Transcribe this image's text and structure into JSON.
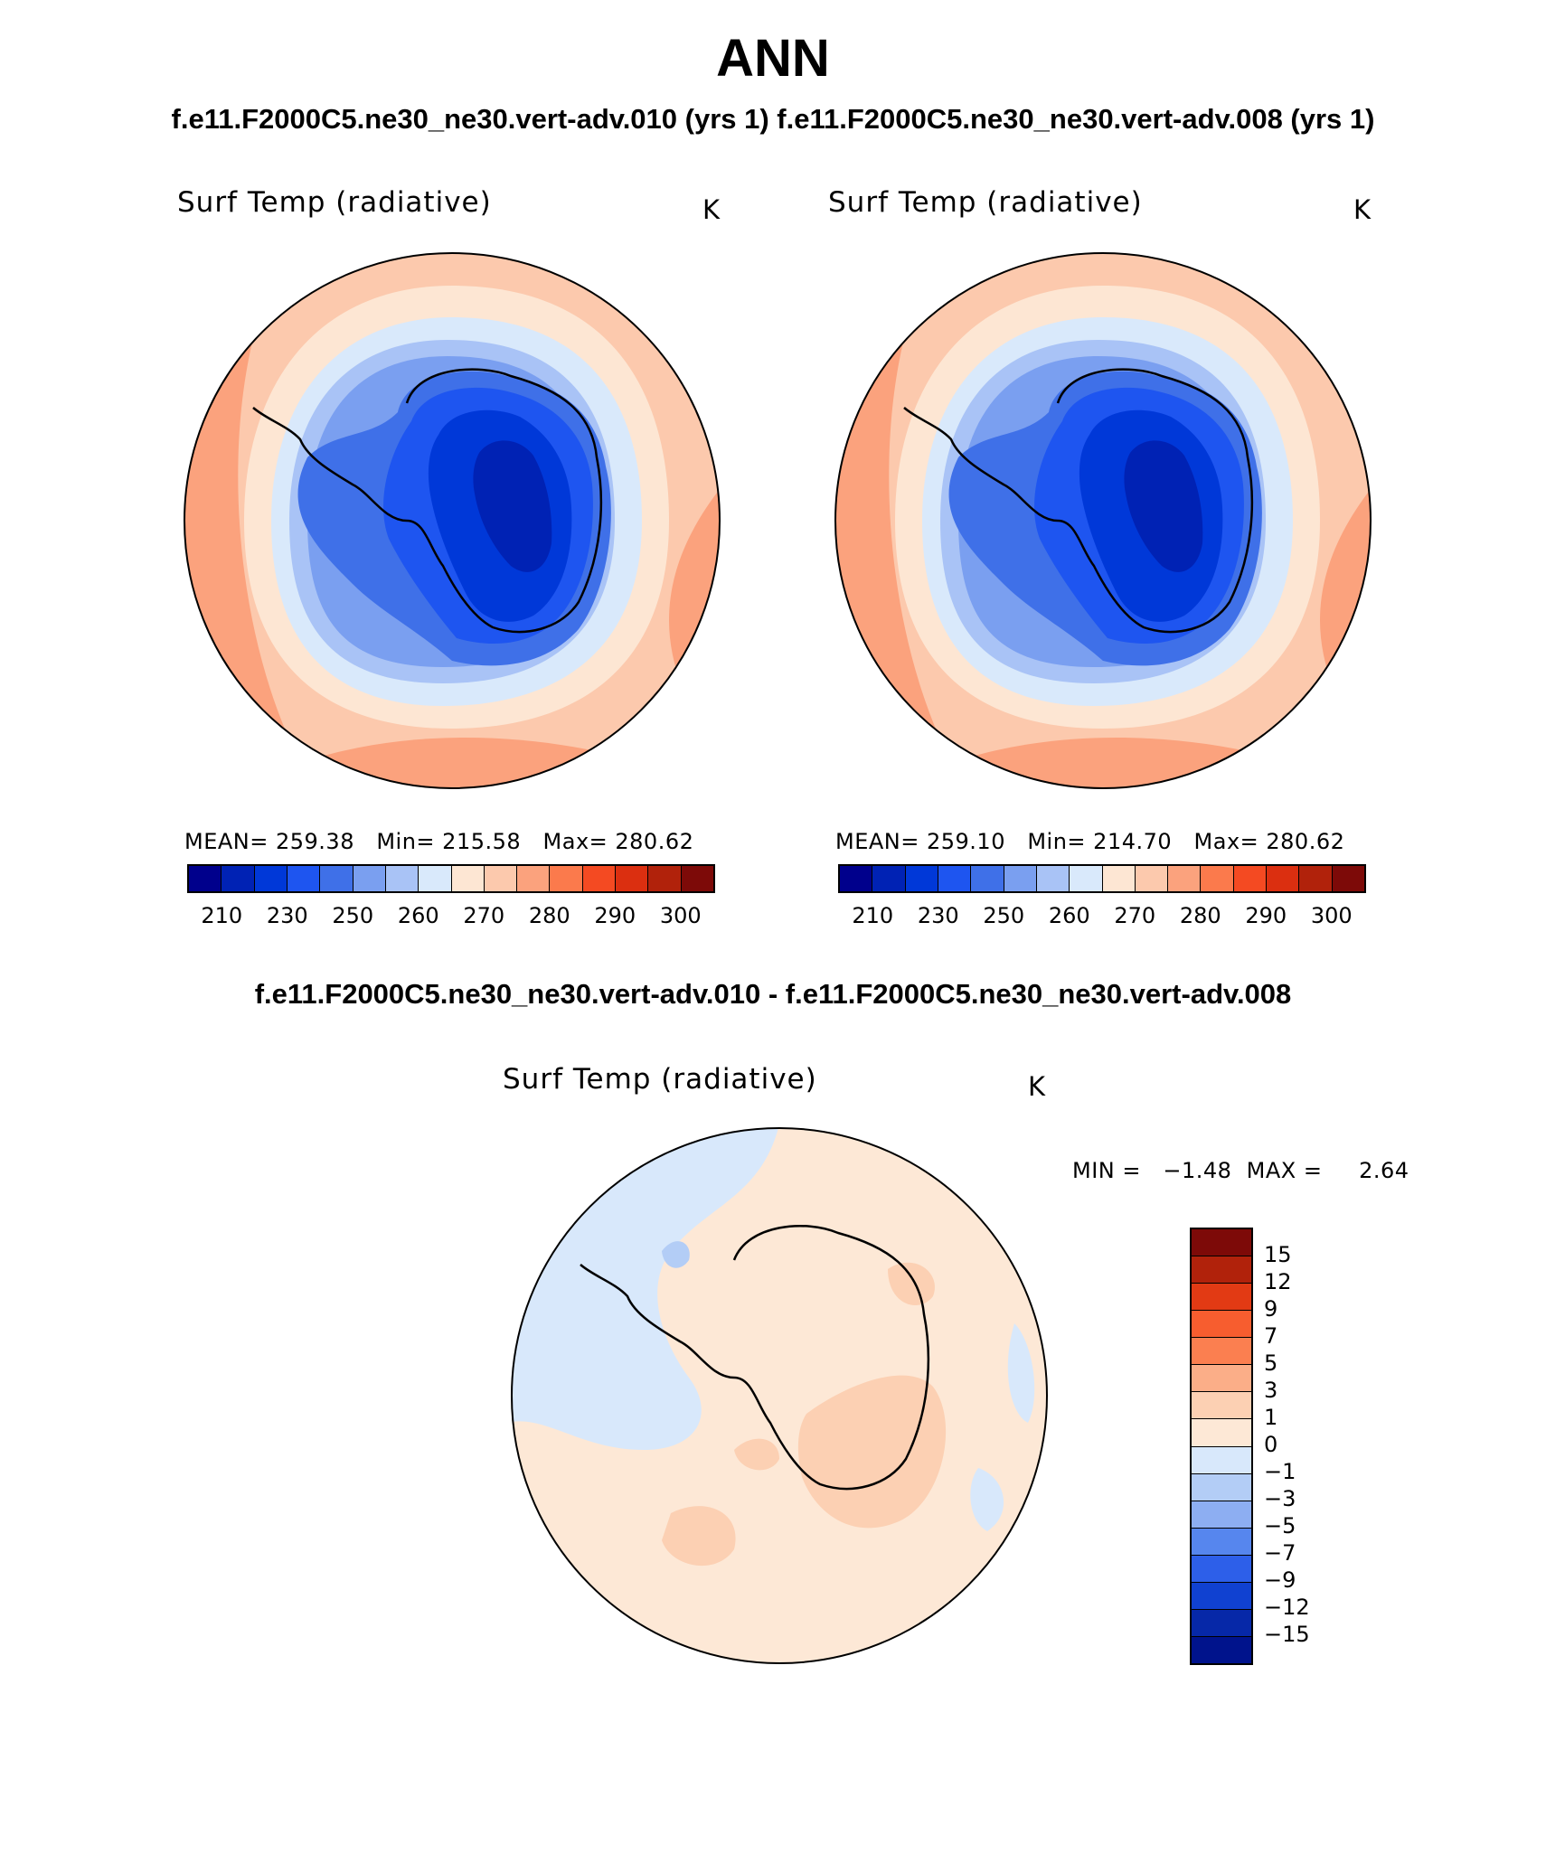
{
  "header": {
    "season": "ANN",
    "subtitle": "f.e11.F2000C5.ne30_ne30.vert-adv.010 (yrs 1) f.e11.F2000C5.ne30_ne30.vert-adv.008 (yrs 1)",
    "diff_title": "f.e11.F2000C5.ne30_ne30.vert-adv.010 - f.e11.F2000C5.ne30_ne30.vert-adv.008"
  },
  "panels": [
    {
      "variable": "Surf Temp (radiative)",
      "units": "K",
      "stats": "MEAN= 259.38   Min= 215.58   Max= 280.62",
      "colorbar_labels": [
        "210",
        "230",
        "250",
        "260",
        "270",
        "280",
        "290",
        "300"
      ]
    },
    {
      "variable": "Surf Temp (radiative)",
      "units": "K",
      "stats": "MEAN= 259.10   Min= 214.70   Max= 280.62",
      "colorbar_labels": [
        "210",
        "230",
        "250",
        "260",
        "270",
        "280",
        "290",
        "300"
      ]
    }
  ],
  "diff_panel": {
    "variable": "Surf Temp (radiative)",
    "units": "K",
    "stats": "MIN =   −1.48  MAX =     2.64",
    "colorbar_labels": [
      "15",
      "12",
      "9",
      "7",
      "5",
      "3",
      "1",
      "0",
      "−1",
      "−3",
      "−5",
      "−7",
      "−9",
      "−12",
      "−15"
    ]
  },
  "colors": {
    "abs_scale": [
      "#00008c",
      "#0022b4",
      "#0038d8",
      "#1e55f0",
      "#3f70e8",
      "#7a9ff0",
      "#a9c3f6",
      "#d9e9fb",
      "#fde6d3",
      "#fcc9ad",
      "#fba27d",
      "#fb7a4c",
      "#f44a22",
      "#db2f10",
      "#b1220b",
      "#7d0a08"
    ],
    "diff_scale": [
      "#7d0a08",
      "#b1220b",
      "#e23a14",
      "#f75d2f",
      "#fb7f50",
      "#fbae88",
      "#fcd0b3",
      "#fde8d6",
      "#d8e8fb",
      "#b3cdf6",
      "#8daef2",
      "#5686ee",
      "#2d5fe9",
      "#1041d1",
      "#0628a8",
      "#00138c"
    ]
  }
}
